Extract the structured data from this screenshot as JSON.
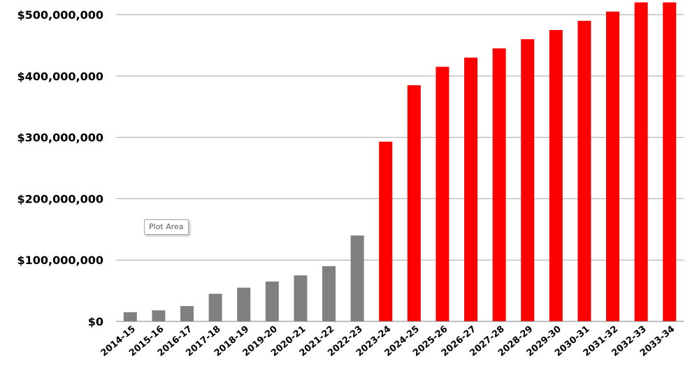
{
  "chart_data": {
    "type": "bar",
    "categories": [
      "2014-15",
      "2015-16",
      "2016-17",
      "2017-18",
      "2018-19",
      "2019-20",
      "2020-21",
      "2021-22",
      "2022-23",
      "2023-24",
      "2024-25",
      "2025-26",
      "2026-27",
      "2027-28",
      "2028-29",
      "2029-30",
      "2030-31",
      "2031-32",
      "2032-33",
      "2033-34"
    ],
    "values": [
      15000000,
      18000000,
      25000000,
      45000000,
      55000000,
      65000000,
      75000000,
      90000000,
      140000000,
      293000000,
      385000000,
      415000000,
      430000000,
      445000000,
      460000000,
      475000000,
      490000000,
      505000000,
      520000000,
      520000000
    ],
    "bar_colors": [
      "#808080",
      "#808080",
      "#808080",
      "#808080",
      "#808080",
      "#808080",
      "#808080",
      "#808080",
      "#808080",
      "#ff0000",
      "#ff0000",
      "#ff0000",
      "#ff0000",
      "#ff0000",
      "#ff0000",
      "#ff0000",
      "#ff0000",
      "#ff0000",
      "#ff0000",
      "#ff0000"
    ],
    "title": "",
    "xlabel": "",
    "ylabel": "",
    "ylim": [
      0,
      500000000
    ],
    "yticks": [
      0,
      100000000,
      200000000,
      300000000,
      400000000,
      500000000
    ],
    "ytick_labels": [
      "$0",
      "$100,000,000",
      "$200,000,000",
      "$300,000,000",
      "$400,000,000",
      "$500,000,000"
    ],
    "grid": true,
    "legend": "none"
  },
  "tooltip": {
    "text": "Plot Area"
  }
}
